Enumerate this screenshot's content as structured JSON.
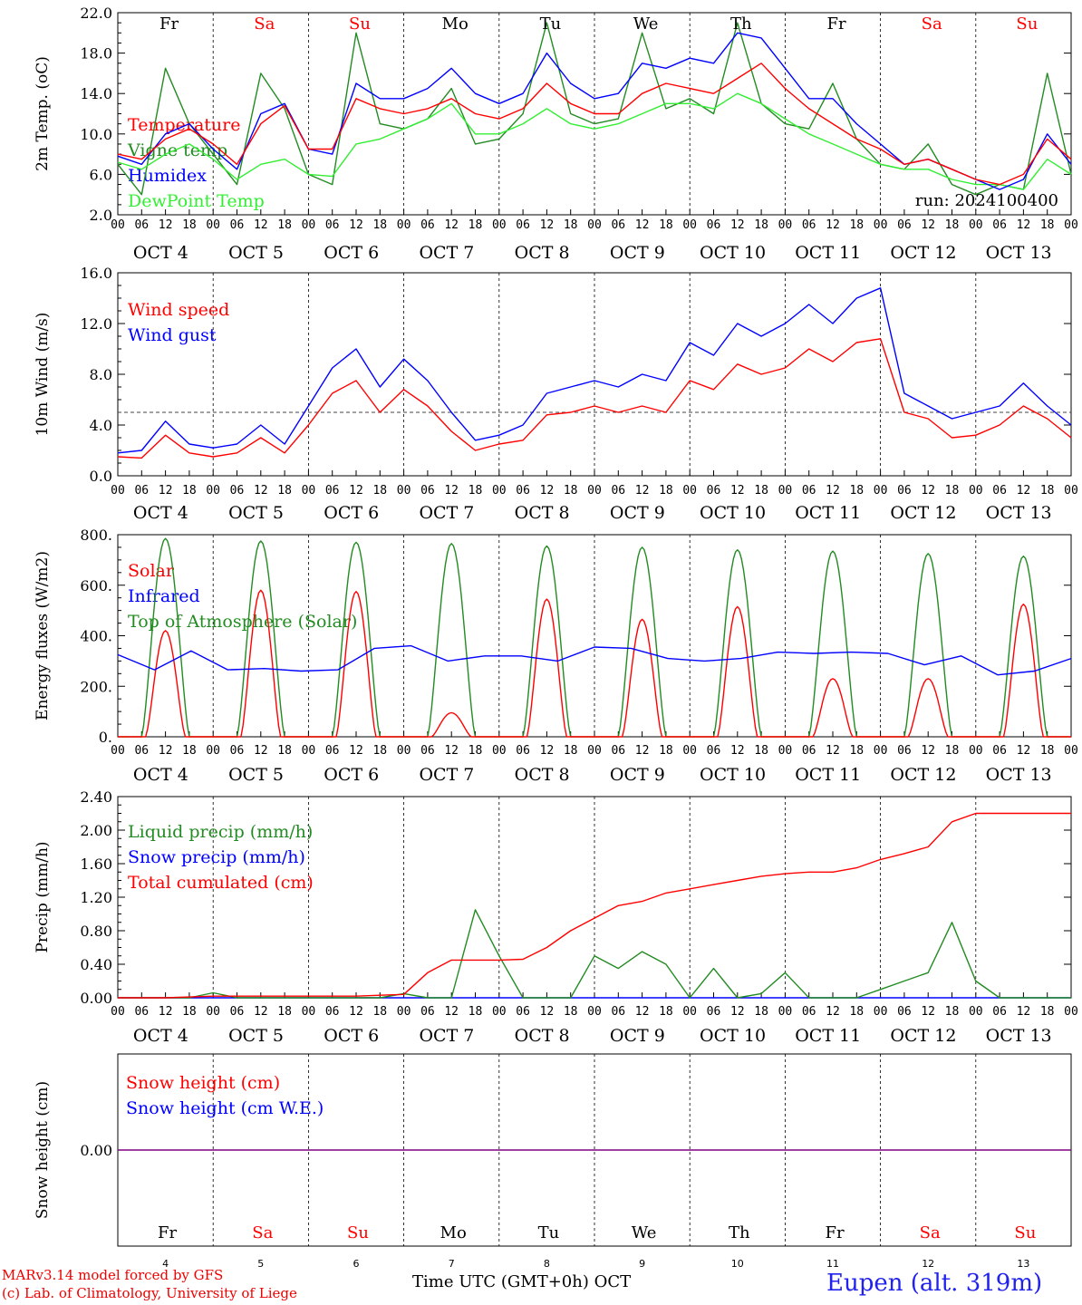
{
  "chart_data": [
    {
      "type": "line",
      "ylabel": "2m Temp. (oC)",
      "ylim": [
        2.0,
        22.0
      ],
      "yticks": [
        "2.0",
        "6.0",
        "10.0",
        "14.0",
        "18.0",
        "22.0"
      ],
      "x_hours": [
        0,
        6,
        12,
        18,
        24,
        30,
        36,
        42,
        48,
        54,
        60,
        66,
        72,
        78,
        84,
        90,
        96,
        102,
        108,
        114,
        120,
        126,
        132,
        138,
        144,
        150,
        156,
        162,
        168,
        174,
        180,
        186,
        192,
        198,
        204,
        210,
        216,
        222,
        228,
        234,
        240
      ],
      "series": [
        {
          "name": "Temperature",
          "color": "#ff0000",
          "values": [
            8.0,
            7.5,
            9.5,
            10.5,
            9.0,
            7.0,
            11.0,
            12.8,
            8.5,
            8.5,
            13.5,
            12.5,
            12.0,
            12.5,
            13.5,
            12.0,
            11.5,
            12.5,
            15.0,
            13.0,
            12.0,
            12.0,
            14.0,
            15.0,
            14.5,
            14.0,
            15.5,
            17.0,
            14.5,
            12.5,
            11.0,
            9.5,
            8.5,
            7.0,
            7.5,
            6.5,
            5.5,
            5.0,
            6.0,
            9.5,
            7.5
          ]
        },
        {
          "name": "Vigne temp",
          "color": "#228b22",
          "values": [
            7.0,
            4.0,
            16.5,
            11.0,
            8.0,
            5.0,
            16.0,
            12.5,
            6.0,
            5.0,
            20.0,
            11.0,
            10.5,
            11.5,
            14.5,
            9.0,
            9.5,
            12.0,
            21.0,
            12.0,
            11.0,
            11.5,
            20.0,
            12.5,
            13.5,
            12.0,
            21.0,
            13.0,
            11.0,
            10.5,
            15.0,
            9.5,
            7.0,
            6.5,
            9.0,
            5.0,
            4.0,
            5.0,
            4.5,
            16.0,
            6.0
          ]
        },
        {
          "name": "Humidex",
          "color": "#0000ff",
          "values": [
            7.8,
            7.0,
            10.0,
            11.0,
            8.5,
            6.5,
            12.0,
            13.0,
            8.5,
            8.0,
            15.0,
            13.5,
            13.5,
            14.5,
            16.5,
            14.0,
            13.0,
            14.0,
            18.0,
            15.0,
            13.5,
            14.0,
            17.0,
            16.5,
            17.5,
            17.0,
            20.0,
            19.5,
            16.5,
            13.5,
            13.5,
            11.0,
            9.0,
            7.0,
            7.5,
            6.5,
            5.5,
            4.5,
            5.5,
            10.0,
            7.0
          ]
        },
        {
          "name": "DewPoint Temp",
          "color": "#33ee33",
          "values": [
            7.2,
            6.5,
            8.0,
            9.0,
            7.5,
            5.5,
            7.0,
            7.5,
            6.0,
            5.8,
            9.0,
            9.5,
            10.5,
            11.5,
            13.0,
            10.0,
            10.0,
            11.0,
            12.5,
            11.0,
            10.5,
            11.0,
            12.0,
            13.0,
            13.0,
            12.5,
            14.0,
            13.0,
            11.5,
            10.0,
            9.0,
            8.0,
            7.0,
            6.5,
            6.5,
            5.5,
            5.0,
            5.0,
            4.5,
            7.5,
            6.0
          ]
        }
      ],
      "annotation": "run: 2024100400"
    },
    {
      "type": "line",
      "ylabel": "10m Wind (m/s)",
      "ylim": [
        0.0,
        16.0
      ],
      "yticks": [
        "0.0",
        "4.0",
        "8.0",
        "12.0",
        "16.0"
      ],
      "reference_line": 5.0,
      "x_hours": [
        0,
        6,
        12,
        18,
        24,
        30,
        36,
        42,
        48,
        54,
        60,
        66,
        72,
        78,
        84,
        90,
        96,
        102,
        108,
        114,
        120,
        126,
        132,
        138,
        144,
        150,
        156,
        162,
        168,
        174,
        180,
        186,
        192,
        198,
        204,
        210,
        216,
        222,
        228,
        234,
        240
      ],
      "series": [
        {
          "name": "Wind speed",
          "color": "#ff0000",
          "values": [
            1.5,
            1.4,
            3.2,
            1.8,
            1.5,
            1.8,
            3.0,
            1.8,
            4.0,
            6.5,
            7.5,
            5.0,
            6.8,
            5.5,
            3.5,
            2.0,
            2.5,
            2.8,
            4.8,
            5.0,
            5.5,
            5.0,
            5.5,
            5.0,
            7.5,
            6.8,
            8.8,
            8.0,
            8.5,
            10.0,
            9.0,
            10.5,
            10.8,
            5.0,
            4.5,
            3.0,
            3.2,
            4.0,
            5.5,
            4.5,
            3.0
          ]
        },
        {
          "name": "Wind gust",
          "color": "#0000ff",
          "values": [
            1.8,
            2.0,
            4.3,
            2.5,
            2.2,
            2.5,
            4.0,
            2.5,
            5.5,
            8.5,
            10.0,
            7.0,
            9.2,
            7.5,
            5.0,
            2.8,
            3.2,
            4.0,
            6.5,
            7.0,
            7.5,
            7.0,
            8.0,
            7.5,
            10.5,
            9.5,
            12.0,
            11.0,
            12.0,
            13.5,
            12.0,
            14.0,
            14.8,
            6.5,
            5.5,
            4.5,
            5.0,
            5.5,
            7.3,
            5.5,
            4.0
          ]
        }
      ]
    },
    {
      "type": "line",
      "ylabel": "Energy fluxes (W/m2)",
      "ylim": [
        0,
        800
      ],
      "yticks": [
        "0.",
        "200.",
        "400.",
        "600.",
        "800."
      ],
      "days": 10,
      "series": [
        {
          "name": "Solar",
          "color": "#ff0000",
          "daily_peak": [
            420,
            580,
            575,
            95,
            545,
            465,
            515,
            230,
            230,
            525
          ]
        },
        {
          "name": "Infrared",
          "color": "#0000ff",
          "values": [
            325,
            265,
            340,
            265,
            270,
            260,
            265,
            350,
            360,
            300,
            320,
            320,
            300,
            355,
            350,
            310,
            300,
            310,
            335,
            330,
            335,
            330,
            285,
            320,
            245,
            260,
            310
          ]
        },
        {
          "name": "Top of Atmosphere (Solar)",
          "color": "#228b22",
          "daily_peak": [
            785,
            775,
            770,
            765,
            755,
            750,
            740,
            735,
            725,
            715
          ]
        }
      ]
    },
    {
      "type": "line",
      "ylabel": "Precip (mm/h)",
      "ylim": [
        0.0,
        2.4
      ],
      "yticks": [
        "0.00",
        "0.40",
        "0.80",
        "1.20",
        "1.60",
        "2.00",
        "2.40"
      ],
      "x_hours": [
        0,
        6,
        12,
        18,
        24,
        30,
        36,
        42,
        48,
        54,
        60,
        66,
        72,
        78,
        84,
        90,
        96,
        102,
        108,
        114,
        120,
        126,
        132,
        138,
        144,
        150,
        156,
        162,
        168,
        174,
        180,
        186,
        192,
        198,
        204,
        210,
        216,
        222,
        228,
        234,
        240
      ],
      "series": [
        {
          "name": "Liquid precip (mm/h)",
          "color": "#228b22",
          "values": [
            0,
            0,
            0,
            0,
            0.06,
            0,
            0,
            0,
            0,
            0,
            0,
            0,
            0.05,
            0,
            0,
            1.05,
            0.5,
            0,
            0,
            0,
            0.5,
            0.35,
            0.55,
            0.4,
            0,
            0.35,
            0,
            0.05,
            0.3,
            0,
            0,
            0,
            0.1,
            0.2,
            0.3,
            0.9,
            0.2,
            0,
            0,
            0,
            0
          ]
        },
        {
          "name": "Snow precip (mm/h)",
          "color": "#0000ff",
          "values": [
            0,
            0,
            0,
            0,
            0,
            0,
            0,
            0,
            0,
            0,
            0,
            0,
            0,
            0,
            0,
            0,
            0,
            0,
            0,
            0,
            0,
            0,
            0,
            0,
            0,
            0,
            0,
            0,
            0,
            0,
            0,
            0,
            0,
            0,
            0,
            0,
            0,
            0,
            0,
            0,
            0
          ]
        },
        {
          "name": "Total cumulated (cm)",
          "color": "#ff0000",
          "values": [
            0,
            0,
            0,
            0.01,
            0.02,
            0.02,
            0.02,
            0.02,
            0.02,
            0.02,
            0.02,
            0.03,
            0.04,
            0.3,
            0.45,
            0.45,
            0.45,
            0.46,
            0.6,
            0.8,
            0.95,
            1.1,
            1.15,
            1.25,
            1.3,
            1.35,
            1.4,
            1.45,
            1.48,
            1.5,
            1.5,
            1.55,
            1.65,
            1.72,
            1.8,
            2.1,
            2.2,
            2.2,
            2.2,
            2.2,
            2.2
          ]
        }
      ]
    },
    {
      "type": "line",
      "ylabel": "Snow height (cm)",
      "ylim": [
        -0.5,
        0.5
      ],
      "yticks": [
        "0.00"
      ],
      "series": [
        {
          "name": "Snow height (cm)",
          "color": "#ff0000",
          "values": [
            0,
            0
          ]
        },
        {
          "name": "Snow height (cm W.E.)",
          "color": "#0000ff",
          "values": [
            0,
            0
          ]
        }
      ]
    }
  ],
  "axis": {
    "hour_ticks": [
      "00",
      "06",
      "12",
      "18"
    ],
    "end_tick": "00",
    "dates": [
      "OCT  4",
      "OCT  5",
      "OCT  6",
      "OCT  7",
      "OCT  8",
      "OCT  9",
      "OCT 10",
      "OCT 11",
      "OCT 12",
      "OCT 13"
    ],
    "day_names": [
      "Fr",
      "Sa",
      "Su",
      "Mo",
      "Tu",
      "We",
      "Th",
      "Fr",
      "Sa",
      "Su"
    ],
    "day_colors": [
      "#000000",
      "#ff0000",
      "#ff0000",
      "#000000",
      "#000000",
      "#000000",
      "#000000",
      "#000000",
      "#ff0000",
      "#ff0000"
    ],
    "day_numbers": [
      "4",
      "5",
      "6",
      "7",
      "8",
      "9",
      "10",
      "11",
      "12",
      "13"
    ],
    "xlabel": "Time UTC (GMT+0h) OCT"
  },
  "footer": {
    "model": "MARv3.14 model forced by GFS",
    "credit": "(c) Lab. of Climatology, University of Liege",
    "location": "Eupen (alt. 319m)"
  }
}
